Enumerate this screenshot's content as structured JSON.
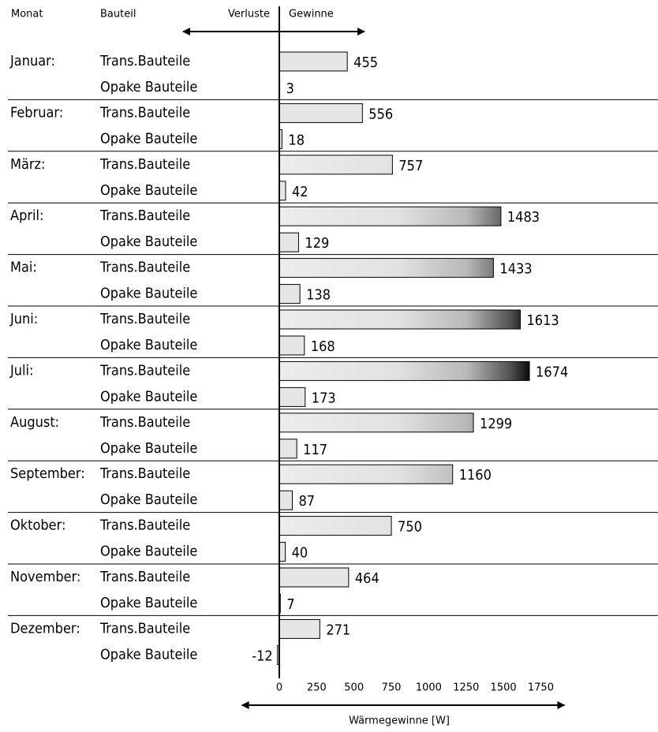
{
  "chart_data": {
    "type": "hbar-grouped",
    "headers": [
      "Monat",
      "Bauteil",
      "Verluste",
      "Gewinne"
    ],
    "xlabel": "Wärmegewinne [W]",
    "categories": [
      "Januar:",
      "Februar:",
      "März:",
      "April:",
      "Mai:",
      "Juni:",
      "Juli:",
      "August:",
      "September:",
      "Oktober:",
      "November:",
      "Dezember:"
    ],
    "series": [
      {
        "name": "Trans.Bauteile",
        "color": "#e6e6e6",
        "values": [
          455,
          556,
          757,
          1483,
          1433,
          1613,
          1674,
          1299,
          1160,
          750,
          464,
          271
        ]
      },
      {
        "name": "Opake Bauteile",
        "color": "#e6e6e6",
        "values": [
          3,
          18,
          42,
          129,
          138,
          168,
          173,
          117,
          87,
          40,
          7,
          -12
        ]
      }
    ],
    "xlim": [
      -250,
      1750
    ],
    "xticks": [
      0,
      250,
      500,
      750,
      1000,
      1250,
      1500,
      1750
    ]
  }
}
